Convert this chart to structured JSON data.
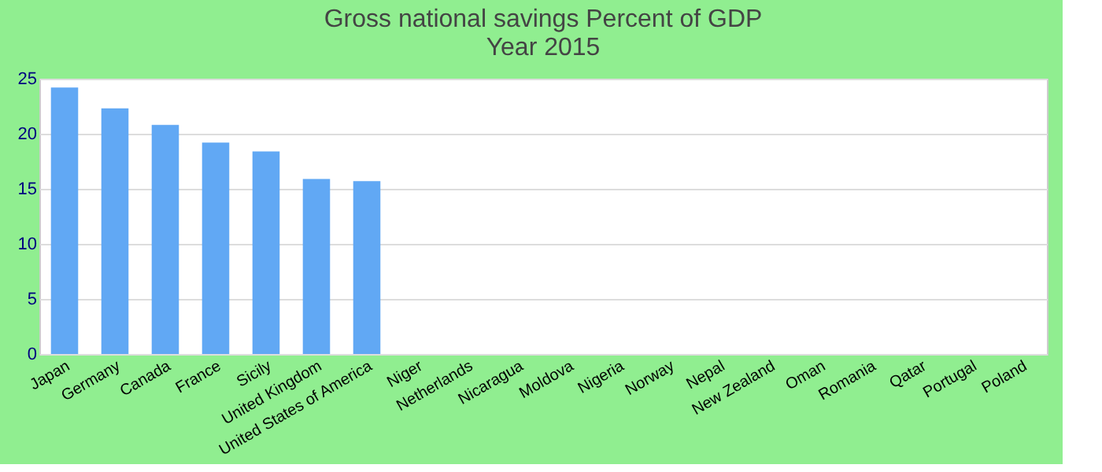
{
  "chart_data": {
    "type": "bar",
    "title": "Gross national savings  Percent of GDP",
    "subtitle": "Year 2015",
    "categories": [
      "Japan",
      "Germany",
      "Canada",
      "France",
      "Sicily",
      "United Kingdom",
      "United States of America",
      "Niger",
      "Netherlands",
      "Nicaragua",
      "Moldova",
      "Nigeria",
      "Norway",
      "Nepal",
      "New Zealand",
      "Oman",
      "Romania",
      "Qatar",
      "Portugal",
      "Poland"
    ],
    "values": [
      24.2,
      22.3,
      20.8,
      19.2,
      18.4,
      15.9,
      15.7,
      null,
      null,
      null,
      null,
      null,
      null,
      null,
      null,
      null,
      null,
      null,
      null,
      null
    ],
    "color": "#61a8f4",
    "ylim": [
      0,
      25
    ],
    "yticks": [
      0,
      5,
      10,
      15,
      20,
      25
    ],
    "grid": "y"
  }
}
